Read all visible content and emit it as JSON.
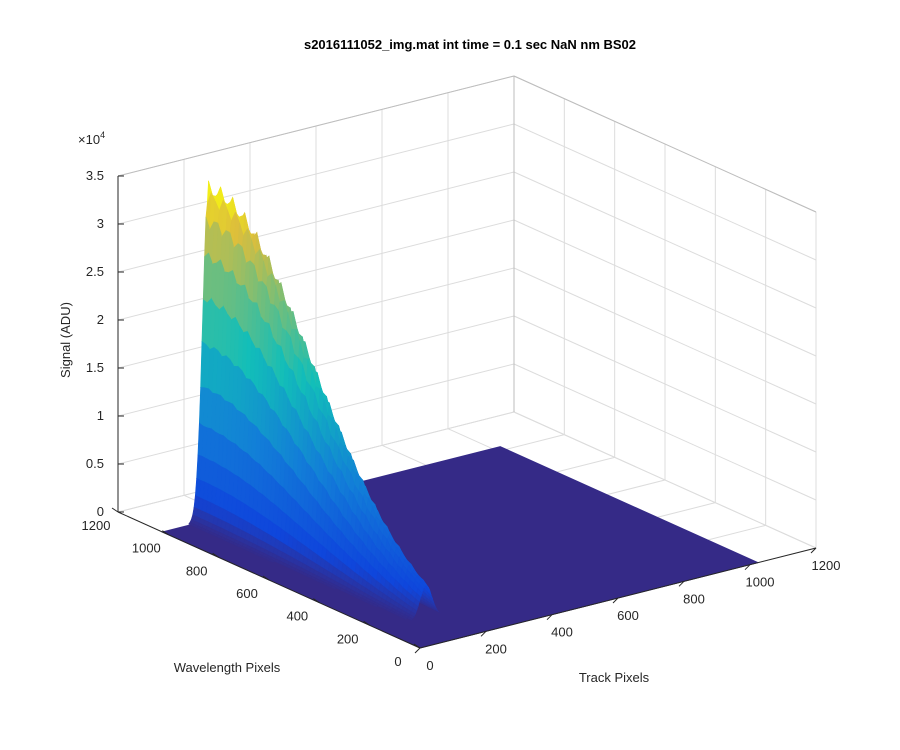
{
  "chart_data": {
    "type": "surface",
    "title": "s2016111052_img.mat int time = 0.1 sec  NaN nm BS02",
    "xlabel": "Track Pixels",
    "ylabel": "Wavelength Pixels",
    "zlabel": "Signal (ADU)",
    "z_exponent": "×10",
    "z_exponent_power": "4",
    "xlim": [
      0,
      1200
    ],
    "ylim": [
      0,
      1200
    ],
    "zlim": [
      0,
      35000
    ],
    "x_ticks": [
      "0",
      "200",
      "400",
      "600",
      "800",
      "1000",
      "1200"
    ],
    "y_ticks": [
      "0",
      "200",
      "400",
      "600",
      "800",
      "1000",
      "1200"
    ],
    "z_ticks": [
      "0",
      "0.5",
      "1",
      "1.5",
      "2",
      "2.5",
      "3",
      "3.5"
    ],
    "grid": true,
    "colormap": "parula",
    "colors": {
      "floor": "#352a87",
      "low": "#0f5cdd",
      "mid": "#12bed6",
      "high": "#a5be6a",
      "peak": "#f9fb0e"
    },
    "surface": {
      "description_free": true,
      "track_range": [
        0,
        1024
      ],
      "wavelength_range": [
        0,
        1024
      ],
      "peak_track": 140,
      "peak_wavelength": 1000,
      "peak_signal": 34500,
      "track_width": 18,
      "decay_wavelength": 700,
      "background": 0
    }
  }
}
